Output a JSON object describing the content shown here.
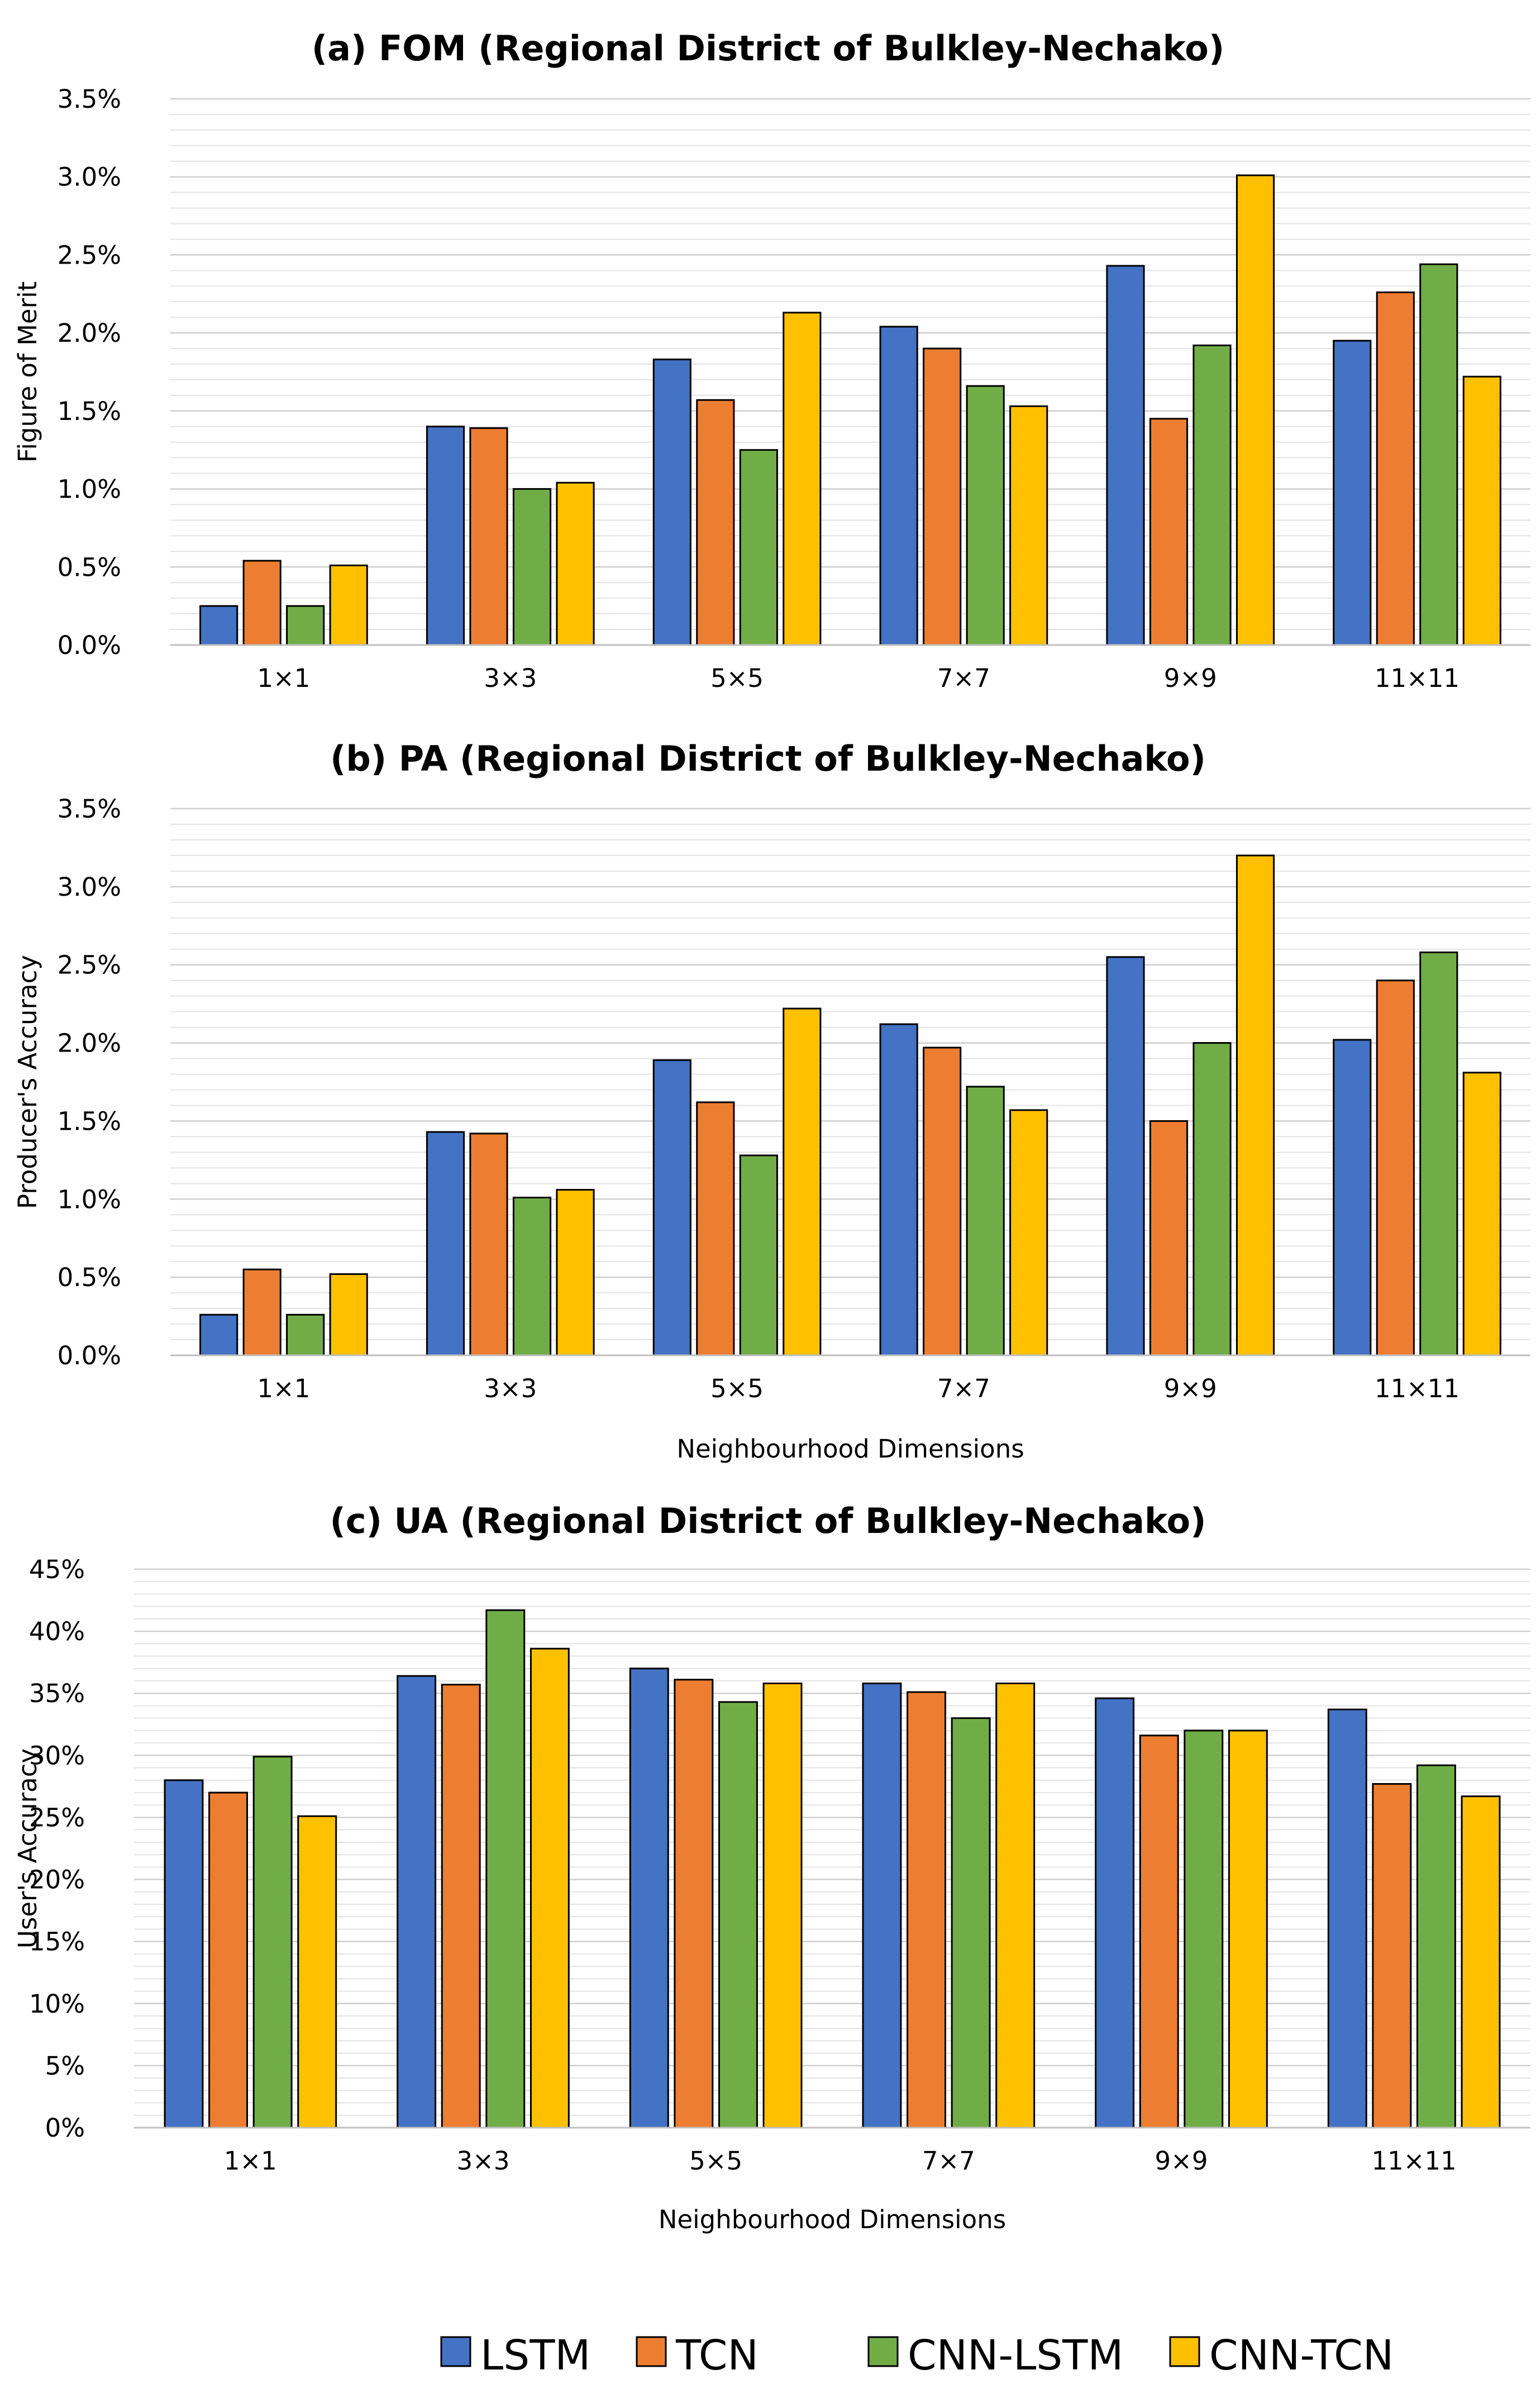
{
  "legend": [
    {
      "name": "LSTM",
      "color": "#4472C4"
    },
    {
      "name": "TCN",
      "color": "#ED7D31"
    },
    {
      "name": "CNN-LSTM",
      "color": "#70AD47"
    },
    {
      "name": "CNN-TCN",
      "color": "#FFC000"
    }
  ],
  "chart_data": [
    {
      "type": "bar",
      "title": "(a) FOM (Regional District of Bulkley-Nechako)",
      "xlabel": "",
      "ylabel": "Figure of Merit",
      "categories": [
        "1×1",
        "3×3",
        "5×5",
        "7×7",
        "9×9",
        "11×11"
      ],
      "ylim": [
        0,
        3.5
      ],
      "yticks": [
        0,
        0.5,
        1.0,
        1.5,
        2.0,
        2.5,
        3.0,
        3.5
      ],
      "ytick_labels": [
        "0.0%",
        "0.5%",
        "1.0%",
        "1.5%",
        "2.0%",
        "2.5%",
        "3.0%",
        "3.5%"
      ],
      "grid": true,
      "series": [
        {
          "name": "LSTM",
          "values": [
            0.25,
            1.4,
            1.83,
            2.04,
            2.43,
            1.95
          ]
        },
        {
          "name": "TCN",
          "values": [
            0.54,
            1.39,
            1.57,
            1.9,
            1.45,
            2.26
          ]
        },
        {
          "name": "CNN-LSTM",
          "values": [
            0.25,
            1.0,
            1.25,
            1.66,
            1.92,
            2.44
          ]
        },
        {
          "name": "CNN-TCN",
          "values": [
            0.51,
            1.04,
            2.13,
            1.53,
            3.01,
            1.72
          ]
        }
      ]
    },
    {
      "type": "bar",
      "title": "(b) PA (Regional District of Bulkley-Nechako)",
      "xlabel": "Neighbourhood Dimensions",
      "ylabel": "Producer's Accuracy",
      "categories": [
        "1×1",
        "3×3",
        "5×5",
        "7×7",
        "9×9",
        "11×11"
      ],
      "ylim": [
        0,
        3.5
      ],
      "yticks": [
        0,
        0.5,
        1.0,
        1.5,
        2.0,
        2.5,
        3.0,
        3.5
      ],
      "ytick_labels": [
        "0.0%",
        "0.5%",
        "1.0%",
        "1.5%",
        "2.0%",
        "2.5%",
        "3.0%",
        "3.5%"
      ],
      "grid": true,
      "series": [
        {
          "name": "LSTM",
          "values": [
            0.26,
            1.43,
            1.89,
            2.12,
            2.55,
            2.02
          ]
        },
        {
          "name": "TCN",
          "values": [
            0.55,
            1.42,
            1.62,
            1.97,
            1.5,
            2.4
          ]
        },
        {
          "name": "CNN-LSTM",
          "values": [
            0.26,
            1.01,
            1.28,
            1.72,
            2.0,
            2.58
          ]
        },
        {
          "name": "CNN-TCN",
          "values": [
            0.52,
            1.06,
            2.22,
            1.57,
            3.2,
            1.81
          ]
        }
      ]
    },
    {
      "type": "bar",
      "title": "(c) UA (Regional District of Bulkley-Nechako)",
      "xlabel": "Neighbourhood Dimensions",
      "ylabel": "User's Accuracy",
      "categories": [
        "1×1",
        "3×3",
        "5×5",
        "7×7",
        "9×9",
        "11×11"
      ],
      "ylim": [
        0,
        45
      ],
      "yticks": [
        0,
        5,
        10,
        15,
        20,
        25,
        30,
        35,
        40,
        45
      ],
      "ytick_labels": [
        "0%",
        "5%",
        "10%",
        "15%",
        "20%",
        "25%",
        "30%",
        "35%",
        "40%",
        "45%"
      ],
      "grid": true,
      "series": [
        {
          "name": "LSTM",
          "values": [
            28.0,
            36.4,
            37.0,
            35.8,
            34.6,
            33.7
          ]
        },
        {
          "name": "TCN",
          "values": [
            27.0,
            35.7,
            36.1,
            35.1,
            31.6,
            27.7
          ]
        },
        {
          "name": "CNN-LSTM",
          "values": [
            29.9,
            41.7,
            34.3,
            33.0,
            32.0,
            29.2
          ]
        },
        {
          "name": "CNN-TCN",
          "values": [
            25.1,
            38.6,
            35.8,
            35.8,
            32.0,
            26.7
          ]
        }
      ]
    }
  ]
}
